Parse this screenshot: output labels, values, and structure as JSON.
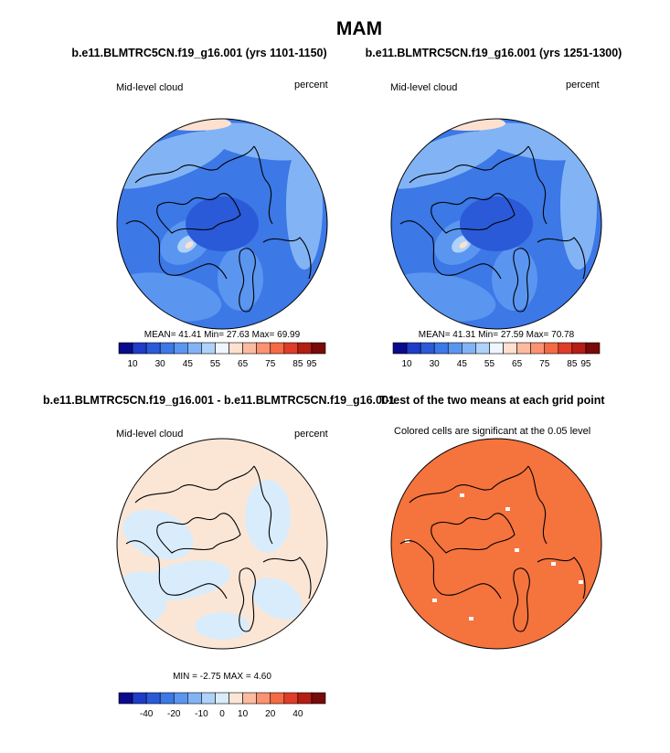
{
  "title": "MAM",
  "panels": [
    {
      "title": "b.e11.BLMTRC5CN.f19_g16.001 (yrs 1101-1150)",
      "variable": "Mid-level cloud",
      "units": "percent",
      "stats": "MEAN=  41.41  Min=  27.63  Max=  69.99"
    },
    {
      "title": "b.e11.BLMTRC5CN.f19_g16.001 (yrs 1251-1300)",
      "variable": "Mid-level cloud",
      "units": "percent",
      "stats": "MEAN=  41.31  Min=  27.59  Max=  70.78"
    },
    {
      "title": "b.e11.BLMTRC5CN.f19_g16.001 - b.e11.BLMTRC5CN.f19_g16.001",
      "variable": "Mid-level cloud",
      "units": "percent",
      "stats": "MIN =  -2.75 MAX =   4.60"
    },
    {
      "title": "T-test of the two means at each grid point",
      "note": "Colored cells are significant at the 0.05 level"
    }
  ],
  "colorbars": [
    {
      "colors": [
        "#0a0a8c",
        "#1e3cc8",
        "#2a5ad8",
        "#3c78e6",
        "#5a96f0",
        "#82b4f5",
        "#afd2fa",
        "#eef6ff",
        "#fde0d0",
        "#fcbba0",
        "#fc9270",
        "#f56a45",
        "#e03c28",
        "#b41e14",
        "#780a0a"
      ],
      "labels": [
        10,
        30,
        45,
        55,
        65,
        75,
        85,
        95
      ]
    },
    {
      "colors": [
        "#0a0a8c",
        "#1e3cc8",
        "#2a5ad8",
        "#3c78e6",
        "#5a96f0",
        "#82b4f5",
        "#afd2fa",
        "#eef6ff",
        "#fde0d0",
        "#fcbba0",
        "#fc9270",
        "#f56a45",
        "#e03c28",
        "#b41e14",
        "#780a0a"
      ],
      "labels": [
        10,
        30,
        45,
        55,
        65,
        75,
        85,
        95
      ]
    },
    {
      "colors": [
        "#0a0a8c",
        "#1e3cc8",
        "#2a5ad8",
        "#3c78e6",
        "#5a96f0",
        "#82b4f5",
        "#afd2fa",
        "#d9ecfb",
        "#fbe6d6",
        "#fcbba0",
        "#fc9270",
        "#f56a45",
        "#e03c28",
        "#b41e14",
        "#780a0a"
      ],
      "labels": [
        -40,
        -20,
        -10,
        0,
        10,
        20,
        40
      ]
    }
  ]
}
